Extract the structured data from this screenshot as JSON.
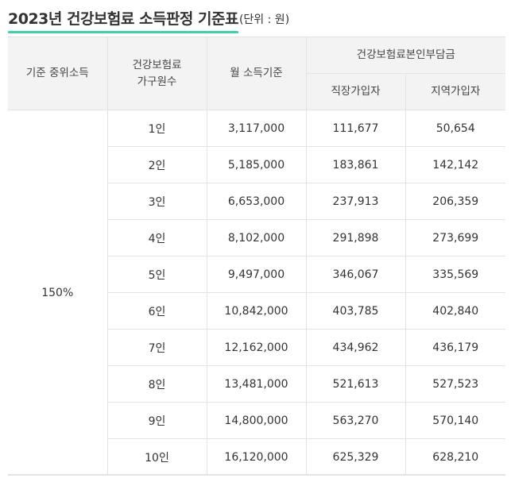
{
  "title": {
    "main": "2023년 건강보험료 소득판정 기준표",
    "unit": "(단위 : 원)"
  },
  "table": {
    "headers": {
      "median_income": "기준 중위소득",
      "household_line1": "건강보험료",
      "household_line2": "가구원수",
      "monthly_income": "월 소득기준",
      "premium_group": "건강보험료본인부담금",
      "employee": "직장가입자",
      "regional": "지역가입자"
    },
    "median_income_value": "150%",
    "rows": [
      {
        "members": "1인",
        "income": "3,117,000",
        "employee": "111,677",
        "regional": "50,654"
      },
      {
        "members": "2인",
        "income": "5,185,000",
        "employee": "183,861",
        "regional": "142,142"
      },
      {
        "members": "3인",
        "income": "6,653,000",
        "employee": "237,913",
        "regional": "206,359"
      },
      {
        "members": "4인",
        "income": "8,102,000",
        "employee": "291,898",
        "regional": "273,699"
      },
      {
        "members": "5인",
        "income": "9,497,000",
        "employee": "346,067",
        "regional": "335,569"
      },
      {
        "members": "6인",
        "income": "10,842,000",
        "employee": "403,785",
        "regional": "402,840"
      },
      {
        "members": "7인",
        "income": "12,162,000",
        "employee": "434,962",
        "regional": "436,179"
      },
      {
        "members": "8인",
        "income": "13,481,000",
        "employee": "521,613",
        "regional": "527,523"
      },
      {
        "members": "9인",
        "income": "14,800,000",
        "employee": "563,270",
        "regional": "570,140"
      },
      {
        "members": "10인",
        "income": "16,120,000",
        "employee": "625,329",
        "regional": "628,210"
      }
    ]
  }
}
